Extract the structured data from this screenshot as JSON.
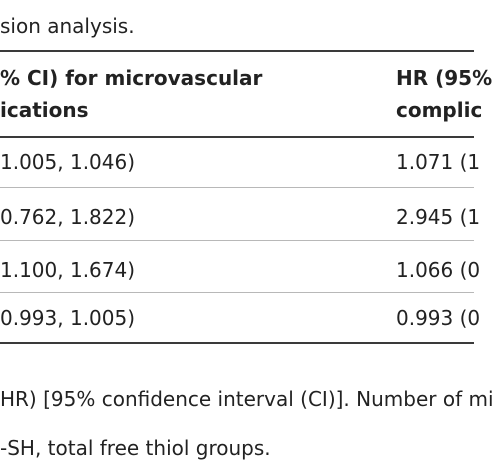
{
  "caption": "sion analysis.",
  "header": {
    "col1": [
      "% CI) for microvascular",
      "ications"
    ],
    "col2": [
      "HR (95%",
      "complic"
    ]
  },
  "rows": [
    {
      "col1": "1.005, 1.046)",
      "col2": "1.071 (1"
    },
    {
      "col1": "0.762, 1.822)",
      "col2": "2.945 (1"
    },
    {
      "col1": "1.100, 1.674)",
      "col2": "1.066 (0"
    },
    {
      "col1": "0.993, 1.005)",
      "col2": "0.993 (0"
    }
  ],
  "footnotes": [
    "HR) [95% confidence interval (CI)]. Number of mi",
    "-SH, total free thiol groups."
  ]
}
